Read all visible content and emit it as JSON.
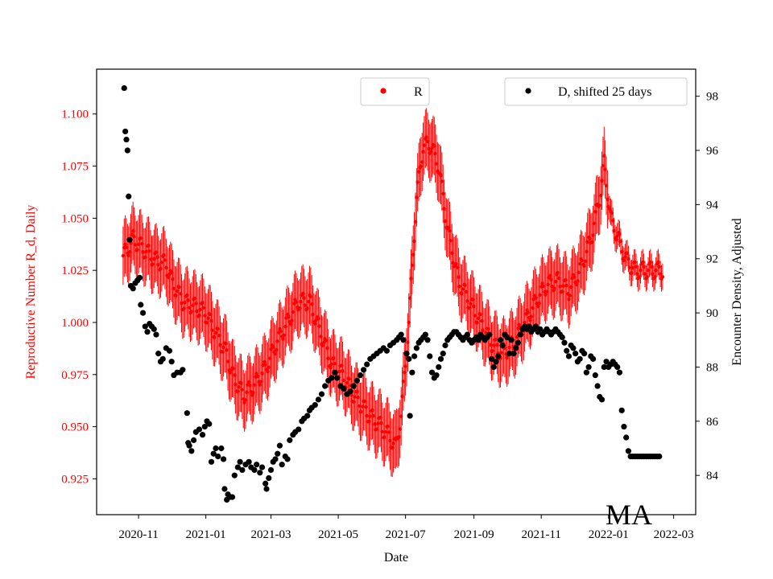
{
  "chart_data": {
    "type": "scatter",
    "xlabel": "Date",
    "y_left_label": "Reproductive Number R_d, Daily",
    "y_right_label": "Encounter Density, Adjusted",
    "x_ticks": [
      "2020-11",
      "2021-01",
      "2021-03",
      "2021-05",
      "2021-07",
      "2021-09",
      "2021-11",
      "2022-01",
      "2022-03"
    ],
    "x_tick_days": [
      0,
      61,
      120,
      181,
      242,
      304,
      365,
      426,
      485
    ],
    "x_range_days": [
      -38,
      505
    ],
    "y_left_ticks": [
      "0.925",
      "0.950",
      "0.975",
      "1.000",
      "1.025",
      "1.050",
      "1.075",
      "1.100"
    ],
    "y_left_range": [
      0.9078,
      1.1215
    ],
    "y_right_ticks": [
      "84",
      "86",
      "88",
      "90",
      "92",
      "94",
      "96",
      "98"
    ],
    "y_right_range": [
      82.55,
      99.0
    ],
    "annotation": "MA",
    "legend": [
      {
        "label": "R",
        "color": "#ff0000",
        "placement": "top-center"
      },
      {
        "label": "D, shifted 25 days",
        "color": "#000000",
        "placement": "top-right"
      }
    ],
    "series": [
      {
        "name": "R",
        "axis": "left",
        "color": "#ff0000",
        "marker": "dot",
        "x_days_start": -14,
        "x_days_end": 475,
        "keypoints": [
          [
            -14,
            1.032
          ],
          [
            -10,
            1.035
          ],
          [
            -5,
            1.04
          ],
          [
            5,
            1.035
          ],
          [
            15,
            1.03
          ],
          [
            25,
            1.028
          ],
          [
            30,
            1.02
          ],
          [
            40,
            1.01
          ],
          [
            50,
            1.008
          ],
          [
            60,
            1.005
          ],
          [
            70,
            0.995
          ],
          [
            80,
            0.985
          ],
          [
            85,
            0.975
          ],
          [
            95,
            0.965
          ],
          [
            105,
            0.97
          ],
          [
            115,
            0.978
          ],
          [
            125,
            0.99
          ],
          [
            135,
            1.0
          ],
          [
            145,
            1.01
          ],
          [
            155,
            1.01
          ],
          [
            165,
            0.995
          ],
          [
            175,
            0.98
          ],
          [
            185,
            0.975
          ],
          [
            195,
            0.965
          ],
          [
            210,
            0.955
          ],
          [
            220,
            0.95
          ],
          [
            228,
            0.945
          ],
          [
            233,
            0.94
          ],
          [
            238,
            0.955
          ],
          [
            245,
            1.0
          ],
          [
            252,
            1.06
          ],
          [
            258,
            1.085
          ],
          [
            265,
            1.085
          ],
          [
            272,
            1.075
          ],
          [
            280,
            1.045
          ],
          [
            290,
            1.02
          ],
          [
            300,
            1.01
          ],
          [
            310,
            1.0
          ],
          [
            320,
            0.99
          ],
          [
            330,
            0.985
          ],
          [
            340,
            0.99
          ],
          [
            350,
            1.0
          ],
          [
            360,
            1.01
          ],
          [
            370,
            1.018
          ],
          [
            380,
            1.02
          ],
          [
            390,
            1.015
          ],
          [
            400,
            1.025
          ],
          [
            410,
            1.04
          ],
          [
            418,
            1.06
          ],
          [
            422,
            1.076
          ],
          [
            428,
            1.05
          ],
          [
            435,
            1.04
          ],
          [
            442,
            1.03
          ],
          [
            450,
            1.025
          ],
          [
            460,
            1.025
          ],
          [
            475,
            1.025
          ]
        ],
        "error_bar_halfwidth": 0.014
      },
      {
        "name": "D, shifted 25 days",
        "axis": "right",
        "color": "#000000",
        "marker": "dot",
        "points": [
          [
            -13,
            98.3
          ],
          [
            -12,
            96.7
          ],
          [
            -11,
            96.4
          ],
          [
            -10,
            96.0
          ],
          [
            -9,
            94.3
          ],
          [
            -8,
            92.7
          ],
          [
            -7,
            91.0
          ],
          [
            -5,
            90.9
          ],
          [
            -3,
            91.1
          ],
          [
            -1,
            91.2
          ],
          [
            1,
            91.3
          ],
          [
            2,
            90.3
          ],
          [
            4,
            90.0
          ],
          [
            6,
            89.5
          ],
          [
            8,
            89.3
          ],
          [
            10,
            89.6
          ],
          [
            12,
            89.5
          ],
          [
            14,
            89.4
          ],
          [
            16,
            89.2
          ],
          [
            18,
            88.5
          ],
          [
            20,
            88.2
          ],
          [
            22,
            88.3
          ],
          [
            25,
            88.7
          ],
          [
            28,
            88.6
          ],
          [
            30,
            88.2
          ],
          [
            32,
            87.7
          ],
          [
            35,
            87.8
          ],
          [
            38,
            87.8
          ],
          [
            40,
            87.9
          ],
          [
            44,
            86.3
          ],
          [
            45,
            85.2
          ],
          [
            46,
            85.1
          ],
          [
            48,
            84.9
          ],
          [
            50,
            85.3
          ],
          [
            52,
            85.6
          ],
          [
            55,
            85.7
          ],
          [
            58,
            85.5
          ],
          [
            60,
            85.8
          ],
          [
            62,
            86.0
          ],
          [
            64,
            85.9
          ],
          [
            66,
            84.5
          ],
          [
            68,
            84.8
          ],
          [
            70,
            85.0
          ],
          [
            72,
            84.7
          ],
          [
            75,
            85.0
          ],
          [
            77,
            84.6
          ],
          [
            78,
            83.5
          ],
          [
            80,
            83.1
          ],
          [
            81,
            83.3
          ],
          [
            83,
            83.2
          ],
          [
            85,
            83.2
          ],
          [
            87,
            84.0
          ],
          [
            90,
            84.3
          ],
          [
            92,
            84.5
          ],
          [
            94,
            84.2
          ],
          [
            97,
            84.4
          ],
          [
            100,
            84.5
          ],
          [
            102,
            84.3
          ],
          [
            105,
            84.2
          ],
          [
            107,
            84.4
          ],
          [
            110,
            84.1
          ],
          [
            112,
            84.3
          ],
          [
            115,
            83.7
          ],
          [
            116,
            83.5
          ],
          [
            118,
            83.9
          ],
          [
            120,
            84.2
          ],
          [
            122,
            84.5
          ],
          [
            124,
            84.6
          ],
          [
            126,
            84.8
          ],
          [
            128,
            85.1
          ],
          [
            130,
            84.4
          ],
          [
            133,
            84.7
          ],
          [
            135,
            84.6
          ],
          [
            137,
            85.3
          ],
          [
            140,
            85.5
          ],
          [
            142,
            85.6
          ],
          [
            145,
            85.7
          ],
          [
            148,
            86.0
          ],
          [
            150,
            86.1
          ],
          [
            153,
            86.2
          ],
          [
            155,
            86.4
          ],
          [
            157,
            86.5
          ],
          [
            160,
            86.6
          ],
          [
            163,
            86.8
          ],
          [
            166,
            87.0
          ],
          [
            169,
            87.3
          ],
          [
            172,
            87.5
          ],
          [
            175,
            87.6
          ],
          [
            178,
            87.8
          ],
          [
            180,
            87.6
          ],
          [
            183,
            87.3
          ],
          [
            186,
            87.2
          ],
          [
            189,
            87.0
          ],
          [
            192,
            87.1
          ],
          [
            195,
            87.3
          ],
          [
            198,
            87.5
          ],
          [
            201,
            87.7
          ],
          [
            204,
            87.9
          ],
          [
            207,
            88.1
          ],
          [
            210,
            88.3
          ],
          [
            213,
            88.4
          ],
          [
            216,
            88.5
          ],
          [
            219,
            88.6
          ],
          [
            222,
            88.7
          ],
          [
            225,
            88.6
          ],
          [
            228,
            88.8
          ],
          [
            231,
            88.9
          ],
          [
            234,
            89.0
          ],
          [
            236,
            89.1
          ],
          [
            238,
            89.2
          ],
          [
            240,
            89.0
          ],
          [
            243,
            88.5
          ],
          [
            245,
            88.3
          ],
          [
            246,
            86.2
          ],
          [
            248,
            87.8
          ],
          [
            250,
            88.4
          ],
          [
            252,
            88.7
          ],
          [
            254,
            88.9
          ],
          [
            256,
            89.0
          ],
          [
            258,
            89.1
          ],
          [
            260,
            89.2
          ],
          [
            262,
            89.0
          ],
          [
            264,
            88.4
          ],
          [
            266,
            87.8
          ],
          [
            268,
            87.6
          ],
          [
            270,
            87.7
          ],
          [
            272,
            88.0
          ],
          [
            274,
            88.3
          ],
          [
            276,
            88.5
          ],
          [
            278,
            88.8
          ],
          [
            280,
            89.0
          ],
          [
            282,
            89.1
          ],
          [
            284,
            89.2
          ],
          [
            286,
            89.3
          ],
          [
            288,
            89.3
          ],
          [
            290,
            89.2
          ],
          [
            292,
            89.1
          ],
          [
            294,
            89.0
          ],
          [
            296,
            89.1
          ],
          [
            298,
            89.2
          ],
          [
            300,
            89.0
          ],
          [
            302,
            88.9
          ],
          [
            304,
            89.0
          ],
          [
            306,
            89.1
          ],
          [
            308,
            89.0
          ],
          [
            310,
            89.2
          ],
          [
            312,
            89.1
          ],
          [
            314,
            89.0
          ],
          [
            316,
            89.1
          ],
          [
            318,
            89.2
          ],
          [
            320,
            88.3
          ],
          [
            322,
            88.0
          ],
          [
            324,
            88.2
          ],
          [
            326,
            88.4
          ],
          [
            328,
            89.0
          ],
          [
            330,
            88.8
          ],
          [
            332,
            89.2
          ],
          [
            334,
            89.1
          ],
          [
            336,
            88.5
          ],
          [
            338,
            89.0
          ],
          [
            340,
            88.5
          ],
          [
            342,
            88.7
          ],
          [
            344,
            88.9
          ],
          [
            346,
            89.2
          ],
          [
            348,
            89.4
          ],
          [
            350,
            89.5
          ],
          [
            352,
            89.4
          ],
          [
            354,
            89.5
          ],
          [
            356,
            89.3
          ],
          [
            358,
            89.4
          ],
          [
            360,
            89.5
          ],
          [
            362,
            89.3
          ],
          [
            364,
            89.4
          ],
          [
            366,
            89.2
          ],
          [
            368,
            89.3
          ],
          [
            370,
            89.4
          ],
          [
            372,
            89.3
          ],
          [
            374,
            89.2
          ],
          [
            376,
            89.3
          ],
          [
            378,
            89.4
          ],
          [
            380,
            89.3
          ],
          [
            382,
            89.2
          ],
          [
            384,
            89.1
          ],
          [
            386,
            88.9
          ],
          [
            388,
            88.6
          ],
          [
            390,
            88.4
          ],
          [
            392,
            88.8
          ],
          [
            394,
            88.7
          ],
          [
            396,
            88.5
          ],
          [
            398,
            88.2
          ],
          [
            400,
            88.3
          ],
          [
            402,
            88.6
          ],
          [
            404,
            88.5
          ],
          [
            406,
            87.8
          ],
          [
            408,
            88.0
          ],
          [
            410,
            88.4
          ],
          [
            412,
            88.3
          ],
          [
            414,
            87.7
          ],
          [
            416,
            87.3
          ],
          [
            418,
            86.9
          ],
          [
            420,
            86.8
          ],
          [
            422,
            88.0
          ],
          [
            424,
            88.2
          ],
          [
            426,
            88.0
          ],
          [
            428,
            88.1
          ],
          [
            430,
            88.2
          ],
          [
            432,
            88.1
          ],
          [
            434,
            88.0
          ],
          [
            436,
            87.8
          ],
          [
            438,
            86.4
          ],
          [
            440,
            85.8
          ],
          [
            442,
            85.4
          ],
          [
            444,
            84.9
          ],
          [
            446,
            84.7
          ],
          [
            448,
            84.7
          ],
          [
            450,
            84.7
          ],
          [
            452,
            84.7
          ],
          [
            454,
            84.7
          ],
          [
            456,
            84.7
          ],
          [
            458,
            84.7
          ],
          [
            460,
            84.7
          ],
          [
            462,
            84.7
          ],
          [
            464,
            84.7
          ],
          [
            466,
            84.7
          ],
          [
            468,
            84.7
          ],
          [
            470,
            84.7
          ],
          [
            472,
            84.7
          ]
        ]
      }
    ]
  }
}
